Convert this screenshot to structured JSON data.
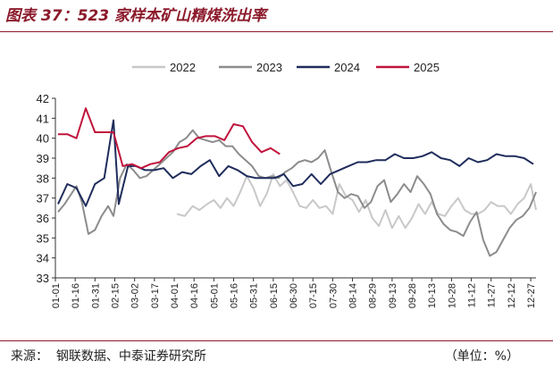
{
  "figure": {
    "title": "图表 37：523 家样本矿山精煤洗出率",
    "source": "来源：  钢联数据、中泰证券研究所",
    "unit": "（单位：%）"
  },
  "colors": {
    "title": "#8b1a2b",
    "s2022": "#c8c8c8",
    "s2023": "#8c8c8c",
    "s2024": "#1f2d5c",
    "s2025": "#c0143c"
  },
  "chart_data": {
    "type": "line",
    "title": "",
    "xlabel": "",
    "ylabel": "",
    "ylim": [
      33,
      42
    ],
    "yticks": [
      33,
      34,
      35,
      36,
      37,
      38,
      39,
      40,
      41,
      42
    ],
    "x_tick_labels": [
      "01-01",
      "01-16",
      "01-31",
      "02-15",
      "03-02",
      "03-17",
      "04-01",
      "04-16",
      "05-01",
      "05-16",
      "05-31",
      "06-15",
      "06-30",
      "07-15",
      "07-30",
      "08-14",
      "08-29",
      "09-13",
      "09-28",
      "10-13",
      "10-28",
      "11-12",
      "11-27",
      "12-12",
      "12-27"
    ],
    "grid": false,
    "legend_position": "top",
    "series": [
      {
        "name": "2022",
        "x": [
          "04-03",
          "04-09",
          "04-15",
          "04-20",
          "04-26",
          "05-01",
          "05-06",
          "05-11",
          "05-16",
          "05-21",
          "05-26",
          "05-31",
          "06-05",
          "06-10",
          "06-15",
          "06-20",
          "06-25",
          "06-30",
          "07-05",
          "07-10",
          "07-15",
          "07-20",
          "07-25",
          "07-30",
          "08-04",
          "08-09",
          "08-14",
          "08-19",
          "08-24",
          "08-29",
          "09-03",
          "09-08",
          "09-13",
          "09-18",
          "09-23",
          "09-28",
          "10-03",
          "10-08",
          "10-13",
          "10-18",
          "10-23",
          "10-28",
          "11-02",
          "11-07",
          "11-12",
          "11-17",
          "11-22",
          "11-27",
          "12-02",
          "12-07",
          "12-12",
          "12-17",
          "12-22",
          "12-27",
          "12-31"
        ],
        "values": [
          36.2,
          36.1,
          36.6,
          36.4,
          36.7,
          36.9,
          36.5,
          37.0,
          36.6,
          37.3,
          38.1,
          37.5,
          36.6,
          37.2,
          38.2,
          37.6,
          37.9,
          37.3,
          36.6,
          36.5,
          36.9,
          36.5,
          36.6,
          36.2,
          37.7,
          37.1,
          36.9,
          36.3,
          36.9,
          36.0,
          35.6,
          36.4,
          35.5,
          36.1,
          35.5,
          36.0,
          36.7,
          36.2,
          36.8,
          36.2,
          36.1,
          36.6,
          37.0,
          36.4,
          36.2,
          36.2,
          36.4,
          36.8,
          36.6,
          36.6,
          36.2,
          36.7,
          37.0,
          37.7,
          36.4
        ]
      },
      {
        "name": "2023",
        "x": [
          "01-03",
          "01-08",
          "01-13",
          "01-17",
          "01-21",
          "01-26",
          "01-31",
          "02-05",
          "02-10",
          "02-14",
          "02-19",
          "02-24",
          "03-01",
          "03-06",
          "03-11",
          "03-16",
          "03-21",
          "03-26",
          "03-31",
          "04-05",
          "04-10",
          "04-15",
          "04-20",
          "04-25",
          "04-30",
          "05-05",
          "05-10",
          "05-15",
          "05-20",
          "05-25",
          "05-30",
          "06-04",
          "06-09",
          "06-14",
          "06-19",
          "06-24",
          "06-29",
          "07-04",
          "07-09",
          "07-14",
          "07-19",
          "07-24",
          "07-29",
          "08-03",
          "08-08",
          "08-13",
          "08-18",
          "08-23",
          "08-28",
          "09-02",
          "09-07",
          "09-12",
          "09-17",
          "09-22",
          "09-27",
          "10-02",
          "10-07",
          "10-12",
          "10-17",
          "10-22",
          "10-27",
          "11-01",
          "11-06",
          "11-11",
          "11-16",
          "11-21",
          "11-26",
          "12-01",
          "12-06",
          "12-11",
          "12-16",
          "12-21",
          "12-26",
          "12-31"
        ],
        "values": [
          36.3,
          36.7,
          37.2,
          37.6,
          36.8,
          35.2,
          35.4,
          36.1,
          36.6,
          36.1,
          38.0,
          38.7,
          38.4,
          38.0,
          38.1,
          38.4,
          38.7,
          39.0,
          39.3,
          39.8,
          40.0,
          40.4,
          40.0,
          39.9,
          39.8,
          39.9,
          39.6,
          39.6,
          39.2,
          38.9,
          38.6,
          38.1,
          38.0,
          38.1,
          38.0,
          38.3,
          38.5,
          38.8,
          38.9,
          38.8,
          39.0,
          39.4,
          38.3,
          37.3,
          37.0,
          37.2,
          37.1,
          36.5,
          36.8,
          37.6,
          37.9,
          36.8,
          37.2,
          37.7,
          37.3,
          38.1,
          37.7,
          37.2,
          36.2,
          35.7,
          35.4,
          35.3,
          35.1,
          35.8,
          36.3,
          34.9,
          34.1,
          34.3,
          34.9,
          35.5,
          35.9,
          36.1,
          36.5,
          37.3
        ]
      },
      {
        "name": "2024",
        "x": [
          "01-03",
          "01-10",
          "01-17",
          "01-24",
          "01-31",
          "02-07",
          "02-14",
          "02-18",
          "02-25",
          "03-03",
          "03-10",
          "03-17",
          "03-24",
          "03-31",
          "04-07",
          "04-14",
          "04-21",
          "04-28",
          "05-05",
          "05-12",
          "05-19",
          "05-26",
          "06-02",
          "06-09",
          "06-16",
          "06-23",
          "06-30",
          "07-07",
          "07-14",
          "07-21",
          "07-28",
          "08-04",
          "08-11",
          "08-18",
          "08-25",
          "09-01",
          "09-08",
          "09-15",
          "09-22",
          "09-29",
          "10-06",
          "10-13",
          "10-20",
          "10-27",
          "11-03",
          "11-10",
          "11-17",
          "11-24",
          "12-01",
          "12-08",
          "12-15",
          "12-22",
          "12-29"
        ],
        "values": [
          36.7,
          37.7,
          37.5,
          36.6,
          37.7,
          38.0,
          40.9,
          36.7,
          38.6,
          38.6,
          38.4,
          38.4,
          38.5,
          38.0,
          38.3,
          38.2,
          38.6,
          38.9,
          38.1,
          38.6,
          38.4,
          38.1,
          38.0,
          38.0,
          38.0,
          38.2,
          37.6,
          37.7,
          38.2,
          37.7,
          38.2,
          38.4,
          38.6,
          38.8,
          38.8,
          38.9,
          38.9,
          39.2,
          39.0,
          39.0,
          39.1,
          39.3,
          39.0,
          38.9,
          38.6,
          39.0,
          38.8,
          38.9,
          39.2,
          39.1,
          39.1,
          39.0,
          38.7
        ]
      },
      {
        "name": "2025",
        "x": [
          "01-03",
          "01-10",
          "01-17",
          "01-24",
          "01-31",
          "02-08",
          "02-14",
          "02-21",
          "02-28",
          "03-07",
          "03-14",
          "03-21",
          "03-28",
          "04-04",
          "04-11",
          "04-18",
          "04-25",
          "05-02",
          "05-09",
          "05-16",
          "05-23",
          "05-30",
          "06-06",
          "06-13",
          "06-20"
        ],
        "values": [
          40.2,
          40.2,
          40.0,
          41.5,
          40.3,
          40.3,
          40.3,
          38.6,
          38.7,
          38.5,
          38.7,
          38.8,
          39.3,
          39.5,
          39.6,
          40.0,
          40.1,
          40.1,
          39.9,
          40.7,
          40.6,
          39.8,
          39.3,
          39.5,
          39.2
        ]
      }
    ]
  }
}
